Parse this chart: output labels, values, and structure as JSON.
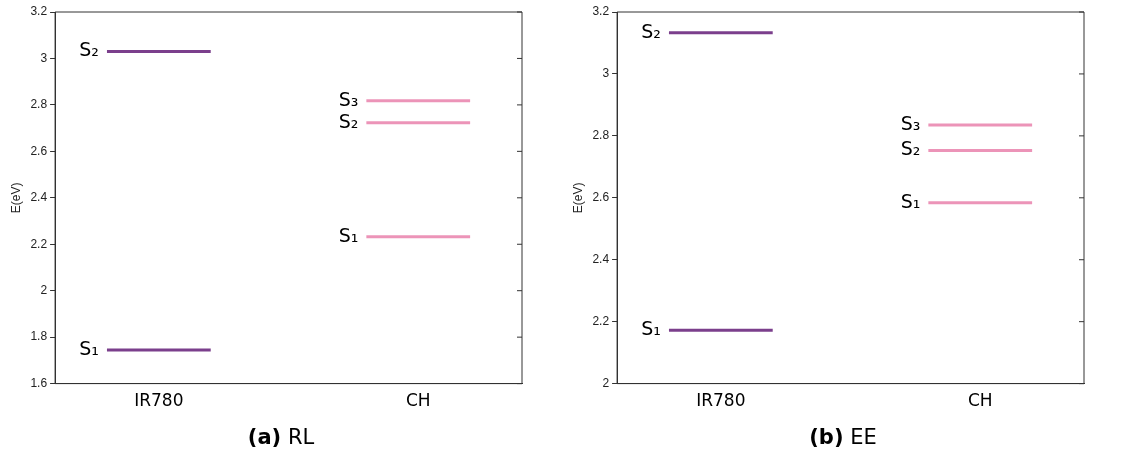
{
  "chart_data": [
    {
      "type": "line",
      "title": "(a) RL",
      "ylabel": "E(eV)",
      "categories": [
        null,
        null,
        "IR780",
        null,
        null,
        null,
        null,
        "CH",
        null,
        null
      ],
      "ylim": [
        1.6,
        3.2
      ],
      "yticks": [
        1.6,
        1.8,
        2,
        2.2,
        2.4,
        2.6,
        2.8,
        3,
        3.2
      ],
      "grid": false,
      "legend": false,
      "marker": "none",
      "series": [
        {
          "name": "S₁",
          "color": "#7b3f8c",
          "values": [
            null,
            1.745,
            1.745,
            1.745,
            null,
            null,
            null,
            null,
            null,
            null
          ]
        },
        {
          "name": "S₂",
          "color": "#7b3f8c",
          "values": [
            null,
            3.03,
            3.03,
            3.03,
            null,
            null,
            null,
            null,
            null,
            null
          ]
        },
        {
          "name": "S₁",
          "color": "#ec94b8",
          "values": [
            null,
            null,
            null,
            null,
            null,
            null,
            2.232,
            2.232,
            2.232,
            null
          ]
        },
        {
          "name": "S₂",
          "color": "#ec94b8",
          "values": [
            null,
            null,
            null,
            null,
            null,
            null,
            2.723,
            2.723,
            2.723,
            null
          ]
        },
        {
          "name": "S₃",
          "color": "#ec94b8",
          "values": [
            null,
            null,
            null,
            null,
            null,
            null,
            2.818,
            2.818,
            2.818,
            null
          ]
        }
      ]
    },
    {
      "type": "line",
      "title": "(b) EE",
      "ylabel": "E(eV)",
      "categories": [
        null,
        null,
        "IR780",
        null,
        null,
        null,
        null,
        "CH",
        null,
        null
      ],
      "ylim": [
        2,
        3.2
      ],
      "yticks": [
        2,
        2.2,
        2.4,
        2.6,
        2.8,
        3,
        3.2
      ],
      "grid": false,
      "legend": false,
      "marker": "none",
      "series": [
        {
          "name": "S₁",
          "color": "#7b3f8c",
          "values": [
            null,
            2.172,
            2.172,
            2.172,
            null,
            null,
            null,
            null,
            null,
            null
          ]
        },
        {
          "name": "S₂",
          "color": "#7b3f8c",
          "values": [
            null,
            3.133,
            3.133,
            3.133,
            null,
            null,
            null,
            null,
            null,
            null
          ]
        },
        {
          "name": "S₁",
          "color": "#ec94b8",
          "values": [
            null,
            null,
            null,
            null,
            null,
            null,
            2.584,
            2.584,
            2.584,
            null
          ]
        },
        {
          "name": "S₂",
          "color": "#ec94b8",
          "values": [
            null,
            null,
            null,
            null,
            null,
            null,
            2.753,
            2.753,
            2.753,
            null
          ]
        },
        {
          "name": "S₃",
          "color": "#ec94b8",
          "values": [
            null,
            null,
            null,
            null,
            null,
            null,
            2.835,
            2.835,
            2.835,
            null
          ]
        }
      ]
    }
  ]
}
